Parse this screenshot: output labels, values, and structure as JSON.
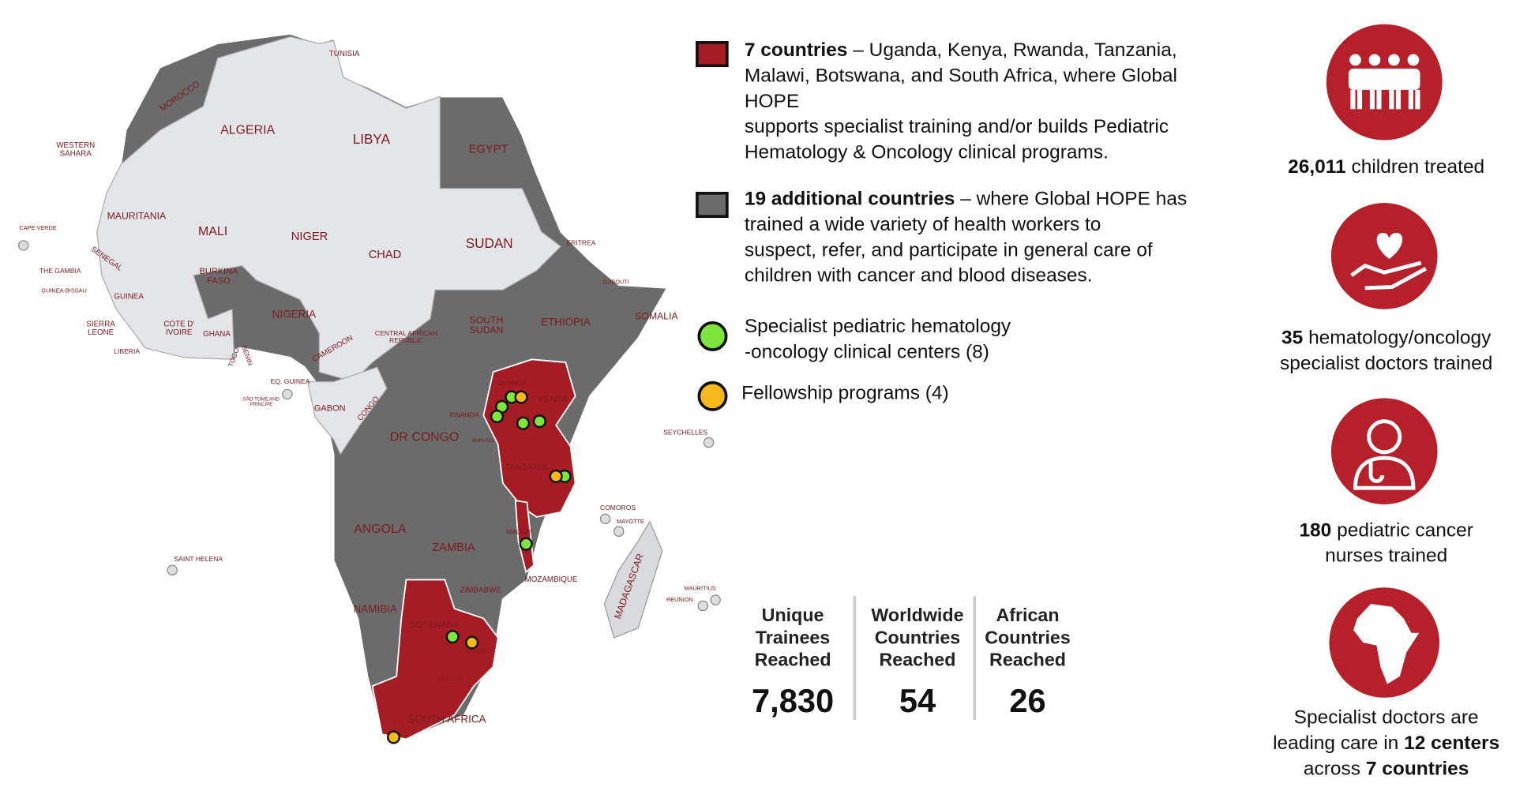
{
  "map": {
    "labels": [
      [
        "TUNISIA"
      ],
      [
        "MOROCCO"
      ],
      [
        "ALGERIA"
      ],
      [
        "LIBYA"
      ],
      [
        "EGYPT"
      ],
      [
        "WESTERN",
        "SAHARA"
      ],
      [
        "MAURITANIA"
      ],
      [
        "MALI"
      ],
      [
        "NIGER"
      ],
      [
        "CHAD"
      ],
      [
        "SUDAN"
      ],
      [
        "ERITREA"
      ],
      [
        "CAPE VERDE"
      ],
      [
        "SENEGAL"
      ],
      [
        "THE GAMBIA"
      ],
      [
        "GUINEA-BISSAU"
      ],
      [
        "GUINEA"
      ],
      [
        "BURKINA",
        "FASO"
      ],
      [
        "DJIBOUTI"
      ],
      [
        "NIGERIA"
      ],
      [
        "ETHIOPIA"
      ],
      [
        "SOMALIA"
      ],
      [
        "SIERRA",
        "LEONE"
      ],
      [
        "COTE D'",
        "IVOIRE"
      ],
      [
        "GHANA"
      ],
      [
        "TOGO"
      ],
      [
        "BENIN"
      ],
      [
        "CAMEROON"
      ],
      [
        "CENTRAL AFRICAN",
        "REPUBLIC"
      ],
      [
        "SOUTH",
        "SUDAN"
      ],
      [
        "LIBERIA"
      ],
      [
        "EQ. GUINEA"
      ],
      [
        "SÃO TOMÉ AND",
        "PRINCIPE"
      ],
      [
        "GABON"
      ],
      [
        "CONGO"
      ],
      [
        "UGANDA"
      ],
      [
        "KENYA"
      ],
      [
        "RWANDA"
      ],
      [
        "BURUNDI"
      ],
      [
        "DR CONGO"
      ],
      [
        "SEYCHELLES"
      ],
      [
        "TANZANIA"
      ],
      [
        "COMOROS"
      ],
      [
        "MAYOTTE"
      ],
      [
        "ANGOLA"
      ],
      [
        "ZAMBIA"
      ],
      [
        "MALAWI"
      ],
      [
        "MADAGASCAR"
      ],
      [
        "SAINT HELENA"
      ],
      [
        "MOZAMBIQUE"
      ],
      [
        "ZIMBABWE"
      ],
      [
        "MAURITIUS"
      ],
      [
        "REUNION"
      ],
      [
        "NAMIBIA"
      ],
      [
        "BOTSWANA"
      ],
      [
        "ESWATINI"
      ],
      [
        "LESOTHO"
      ],
      [
        "SOUTH AFRICA"
      ]
    ]
  },
  "legend": [
    {
      "lines": [
        [
          {
            "text": "7 countries",
            "bold": true
          },
          "– Uganda, Kenya, Rwanda, Tanzania,"
        ],
        [
          "Malawi, Botswana, and South Africa, where Global"
        ],
        [
          "HOPE"
        ],
        [
          "supports specialist training and/or builds Pediatric"
        ],
        [
          "Hematology & Oncology clinical programs."
        ]
      ]
    },
    {
      "lines": [
        [
          {
            "text": "19 additional countries",
            "bold": true
          },
          "– where Global HOPE has"
        ],
        [
          "trained a wide variety of health workers to"
        ],
        [
          "suspect, refer, and participate in general care of"
        ],
        [
          "children with cancer and blood diseases."
        ]
      ]
    },
    {
      "lines": [
        [
          "Specialist pediatric hematology"
        ],
        [
          "-oncology clinical centers (8)"
        ]
      ]
    },
    {
      "lines": [
        [
          "Fellowship programs (4)"
        ]
      ]
    }
  ],
  "stats": [
    {
      "label": [
        "Unique",
        "Trainees",
        "Reached"
      ],
      "value": "7,830"
    },
    {
      "label": [
        "Worldwide",
        "Countries",
        "Reached"
      ],
      "value": "54"
    },
    {
      "label": [
        "African",
        "Countries",
        "Reached"
      ],
      "value": "26"
    }
  ],
  "highlights": [
    {
      "lines": [
        [
          {
            "text": "26,011",
            "bold": true
          },
          "children treated"
        ]
      ]
    },
    {
      "lines": [
        [
          {
            "text": "35",
            "bold": true
          },
          "hematology/oncology"
        ],
        [
          "specialist doctors trained"
        ]
      ]
    },
    {
      "lines": [
        [
          {
            "text": "180",
            "bold": true
          },
          "pediatric cancer"
        ],
        [
          "nurses trained"
        ]
      ]
    },
    {
      "lines": [
        [
          "Specialist doctors are"
        ],
        [
          "leading care in",
          {
            "text": "12 centers",
            "bold": true
          }
        ],
        [
          "across",
          {
            "text": "7 countries",
            "bold": true
          }
        ]
      ]
    }
  ]
}
